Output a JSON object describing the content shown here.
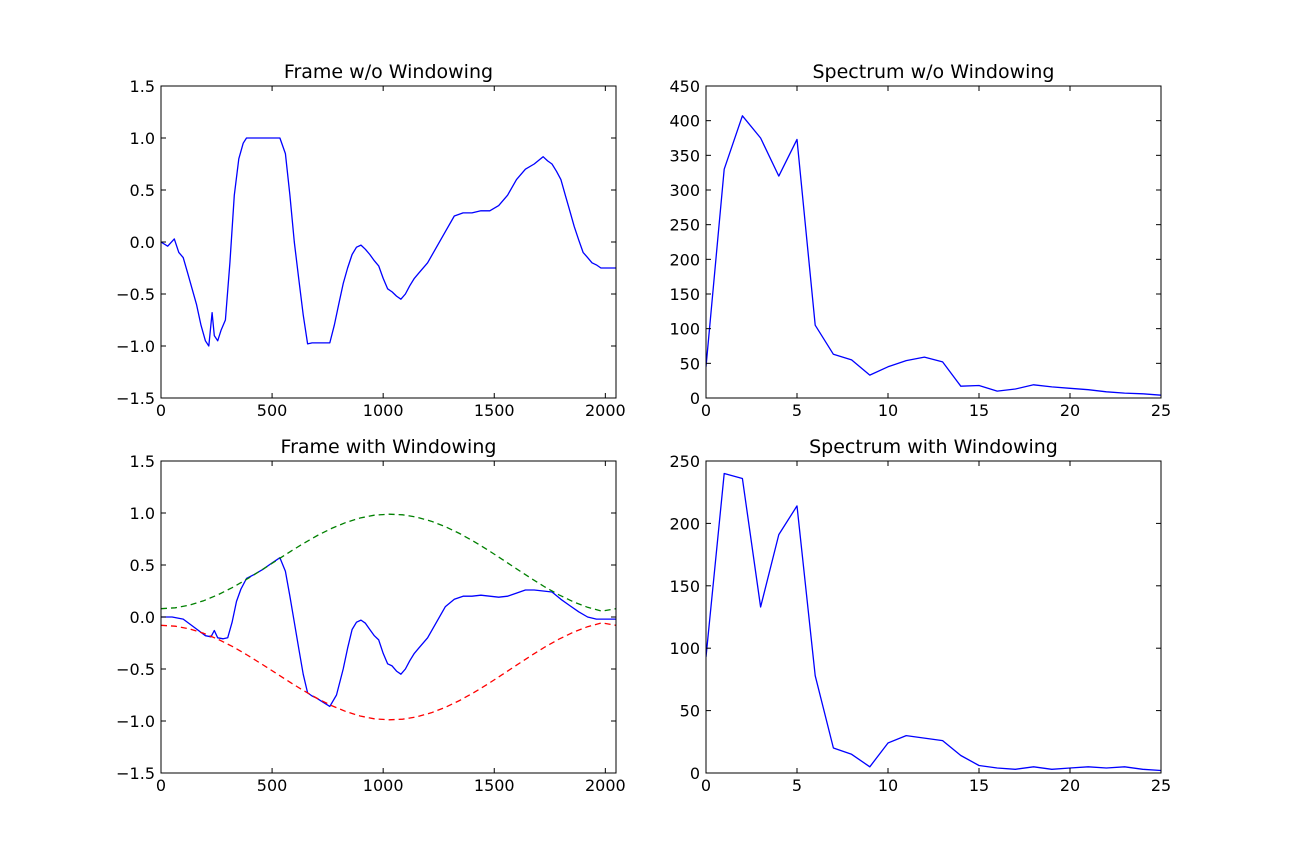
{
  "figure": {
    "background": "#ffffff",
    "colors": {
      "series_blue": "#0000ff",
      "series_green": "#008000",
      "series_red": "#ff0000",
      "axes": "#000000"
    }
  },
  "chart_data": [
    {
      "id": "frame-wo-windowing",
      "type": "line",
      "title": "Frame w/o Windowing",
      "xlabel": "",
      "ylabel": "",
      "xlim": [
        0,
        2048
      ],
      "ylim": [
        -1.5,
        1.5
      ],
      "xticks": [
        0,
        500,
        1000,
        1500,
        2000
      ],
      "yticks": [
        -1.5,
        -1.0,
        -0.5,
        0.0,
        0.5,
        1.0,
        1.5
      ],
      "ytick_labels": [
        "−1.5",
        "−1.0",
        "−0.5",
        "0.0",
        "0.5",
        "1.0",
        "1.5"
      ],
      "grid": false,
      "series": [
        {
          "color": "#0000ff",
          "style": "solid",
          "x": [
            0,
            30,
            60,
            80,
            100,
            120,
            140,
            160,
            180,
            200,
            215,
            230,
            240,
            255,
            270,
            290,
            310,
            330,
            350,
            370,
            385,
            400,
            420,
            450,
            480,
            510,
            535,
            560,
            580,
            600,
            620,
            640,
            660,
            680,
            700,
            730,
            760,
            780,
            800,
            820,
            840,
            860,
            880,
            900,
            920,
            940,
            960,
            980,
            1000,
            1020,
            1040,
            1060,
            1080,
            1100,
            1120,
            1140,
            1160,
            1200,
            1240,
            1280,
            1320,
            1360,
            1400,
            1440,
            1480,
            1520,
            1560,
            1600,
            1640,
            1680,
            1720,
            1740,
            1760,
            1780,
            1800,
            1820,
            1840,
            1860,
            1880,
            1900,
            1920,
            1940,
            1960,
            1980,
            2000,
            2048
          ],
          "y": [
            0.0,
            -0.04,
            0.03,
            -0.1,
            -0.15,
            -0.3,
            -0.45,
            -0.6,
            -0.8,
            -0.95,
            -1.0,
            -0.68,
            -0.9,
            -0.95,
            -0.85,
            -0.75,
            -0.2,
            0.45,
            0.8,
            0.95,
            1.0,
            1.0,
            1.0,
            1.0,
            1.0,
            1.0,
            1.0,
            0.85,
            0.45,
            0.0,
            -0.35,
            -0.7,
            -0.98,
            -0.97,
            -0.97,
            -0.97,
            -0.97,
            -0.8,
            -0.6,
            -0.4,
            -0.25,
            -0.12,
            -0.05,
            -0.03,
            -0.07,
            -0.12,
            -0.18,
            -0.23,
            -0.35,
            -0.45,
            -0.48,
            -0.52,
            -0.55,
            -0.5,
            -0.42,
            -0.35,
            -0.3,
            -0.2,
            -0.05,
            0.1,
            0.25,
            0.28,
            0.28,
            0.3,
            0.3,
            0.35,
            0.45,
            0.6,
            0.7,
            0.75,
            0.82,
            0.78,
            0.75,
            0.68,
            0.6,
            0.45,
            0.3,
            0.15,
            0.02,
            -0.1,
            -0.15,
            -0.2,
            -0.22,
            -0.25,
            -0.25,
            -0.25
          ]
        }
      ]
    },
    {
      "id": "spectrum-wo-windowing",
      "type": "line",
      "title": "Spectrum w/o Windowing",
      "xlabel": "",
      "ylabel": "",
      "xlim": [
        0,
        25
      ],
      "ylim": [
        0,
        450
      ],
      "xticks": [
        0,
        5,
        10,
        15,
        20,
        25
      ],
      "yticks": [
        0,
        50,
        100,
        150,
        200,
        250,
        300,
        350,
        400,
        450
      ],
      "grid": false,
      "series": [
        {
          "color": "#0000ff",
          "style": "solid",
          "x": [
            0,
            1,
            2,
            3,
            4,
            5,
            6,
            7,
            8,
            9,
            10,
            11,
            12,
            13,
            14,
            15,
            16,
            17,
            18,
            19,
            20,
            21,
            22,
            23,
            24,
            25
          ],
          "y": [
            45,
            330,
            407,
            375,
            320,
            373,
            105,
            63,
            55,
            33,
            45,
            54,
            59,
            52,
            17,
            18,
            10,
            13,
            19,
            16,
            14,
            12,
            9,
            7,
            6,
            4
          ]
        }
      ]
    },
    {
      "id": "frame-with-windowing",
      "type": "line",
      "title": "Frame with Windowing",
      "xlabel": "",
      "ylabel": "",
      "xlim": [
        0,
        2048
      ],
      "ylim": [
        -1.5,
        1.5
      ],
      "xticks": [
        0,
        500,
        1000,
        1500,
        2000
      ],
      "yticks": [
        -1.5,
        -1.0,
        -0.5,
        0.0,
        0.5,
        1.0,
        1.5
      ],
      "ytick_labels": [
        "−1.5",
        "−1.0",
        "−0.5",
        "0.0",
        "0.5",
        "1.0",
        "1.5"
      ],
      "grid": false,
      "series": [
        {
          "color": "#0000ff",
          "style": "solid",
          "x": [
            0,
            50,
            100,
            150,
            200,
            225,
            240,
            255,
            280,
            300,
            320,
            340,
            360,
            385,
            420,
            460,
            500,
            535,
            560,
            580,
            600,
            620,
            640,
            660,
            680,
            700,
            730,
            760,
            790,
            820,
            840,
            860,
            880,
            900,
            920,
            940,
            960,
            980,
            1000,
            1020,
            1040,
            1060,
            1080,
            1100,
            1120,
            1140,
            1160,
            1200,
            1240,
            1280,
            1320,
            1360,
            1400,
            1440,
            1480,
            1520,
            1560,
            1600,
            1640,
            1680,
            1720,
            1760,
            1800,
            1840,
            1880,
            1920,
            1960,
            2000,
            2048
          ],
          "y": [
            0.0,
            0.0,
            -0.02,
            -0.1,
            -0.18,
            -0.19,
            -0.13,
            -0.2,
            -0.21,
            -0.2,
            -0.05,
            0.15,
            0.27,
            0.37,
            0.41,
            0.46,
            0.52,
            0.57,
            0.44,
            0.2,
            -0.05,
            -0.3,
            -0.55,
            -0.73,
            -0.76,
            -0.78,
            -0.82,
            -0.86,
            -0.75,
            -0.5,
            -0.3,
            -0.12,
            -0.05,
            -0.03,
            -0.06,
            -0.12,
            -0.18,
            -0.22,
            -0.35,
            -0.45,
            -0.47,
            -0.52,
            -0.55,
            -0.5,
            -0.42,
            -0.35,
            -0.3,
            -0.2,
            -0.05,
            0.1,
            0.17,
            0.2,
            0.2,
            0.21,
            0.2,
            0.19,
            0.2,
            0.23,
            0.26,
            0.26,
            0.25,
            0.24,
            0.17,
            0.11,
            0.05,
            0.0,
            -0.02,
            -0.02,
            -0.02
          ]
        },
        {
          "color": "#008000",
          "style": "dashed",
          "formula": "hamming",
          "x": [
            0,
            64,
            128,
            192,
            256,
            320,
            384,
            448,
            512,
            576,
            640,
            704,
            768,
            832,
            896,
            960,
            1024,
            1088,
            1152,
            1216,
            1280,
            1344,
            1408,
            1472,
            1536,
            1600,
            1664,
            1728,
            1792,
            1856,
            1920,
            1984,
            2048
          ],
          "y": [
            0.08,
            0.0888,
            0.1147,
            0.1567,
            0.2131,
            0.2818,
            0.3601,
            0.4449,
            0.5331,
            0.6212,
            0.7059,
            0.7839,
            0.8524,
            0.909,
            0.9516,
            0.9785,
            0.9889,
            0.9827,
            0.96,
            0.9216,
            0.8687,
            0.8031,
            0.727,
            0.643,
            0.554,
            0.4631,
            0.3736,
            0.2889,
            0.2121,
            0.1462,
            0.0937,
            0.0569,
            0.08
          ]
        },
        {
          "color": "#ff0000",
          "style": "dashed",
          "formula": "negative hamming",
          "x": [
            0,
            64,
            128,
            192,
            256,
            320,
            384,
            448,
            512,
            576,
            640,
            704,
            768,
            832,
            896,
            960,
            1024,
            1088,
            1152,
            1216,
            1280,
            1344,
            1408,
            1472,
            1536,
            1600,
            1664,
            1728,
            1792,
            1856,
            1920,
            1984,
            2048
          ],
          "y": [
            -0.08,
            -0.0888,
            -0.1147,
            -0.1567,
            -0.2131,
            -0.2818,
            -0.3601,
            -0.4449,
            -0.5331,
            -0.6212,
            -0.7059,
            -0.7839,
            -0.8524,
            -0.909,
            -0.9516,
            -0.9785,
            -0.9889,
            -0.9827,
            -0.96,
            -0.9216,
            -0.8687,
            -0.8031,
            -0.727,
            -0.643,
            -0.554,
            -0.4631,
            -0.3736,
            -0.2889,
            -0.2121,
            -0.1462,
            -0.0937,
            -0.0569,
            -0.08
          ]
        }
      ]
    },
    {
      "id": "spectrum-with-windowing",
      "type": "line",
      "title": "Spectrum with Windowing",
      "xlabel": "",
      "ylabel": "",
      "xlim": [
        0,
        25
      ],
      "ylim": [
        0,
        250
      ],
      "xticks": [
        0,
        5,
        10,
        15,
        20,
        25
      ],
      "yticks": [
        0,
        50,
        100,
        150,
        200,
        250
      ],
      "grid": false,
      "series": [
        {
          "color": "#0000ff",
          "style": "solid",
          "x": [
            0,
            1,
            2,
            3,
            4,
            5,
            6,
            7,
            8,
            9,
            10,
            11,
            12,
            13,
            14,
            15,
            16,
            17,
            18,
            19,
            20,
            21,
            22,
            23,
            24,
            25
          ],
          "y": [
            93,
            240,
            236,
            133,
            191,
            214,
            78,
            20,
            15,
            5,
            24,
            30,
            28,
            26,
            14,
            6,
            4,
            3,
            5,
            3,
            4,
            5,
            4,
            5,
            3,
            2
          ]
        }
      ]
    }
  ]
}
